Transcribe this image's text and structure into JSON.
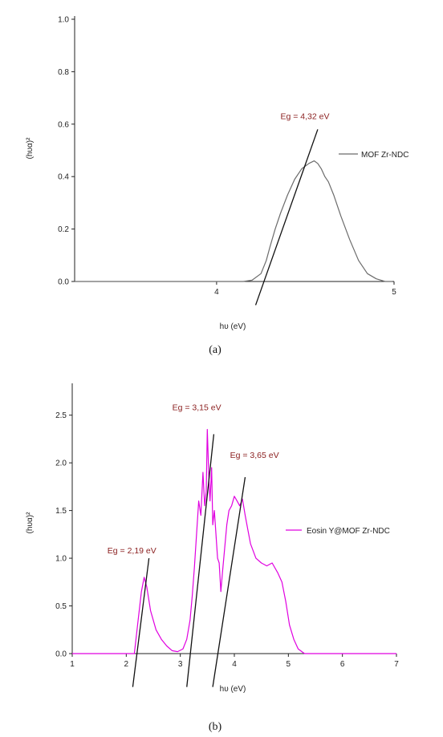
{
  "chart_data": [
    {
      "type": "line",
      "panel_label": "(a)",
      "xlabel": "hυ (eV)",
      "ylabel": "(hυα)²",
      "xlim": [
        3.2,
        5.0
      ],
      "ylim": [
        0.0,
        1.0
      ],
      "x_ticks": [
        4,
        5
      ],
      "y_ticks": [
        0.0,
        0.2,
        0.4,
        0.6,
        0.8,
        1.0
      ],
      "y_tick_labels": [
        "0.0",
        "0.2",
        "0.4",
        "0.6",
        "0.8",
        "1.0"
      ],
      "legend_position": "right",
      "grid": false,
      "series": [
        {
          "name": "MOF Zr-NDC",
          "color": "#6b6b6b",
          "x": [
            3.2,
            4.0,
            4.15,
            4.2,
            4.25,
            4.28,
            4.3,
            4.33,
            4.36,
            4.4,
            4.44,
            4.48,
            4.52,
            4.55,
            4.57,
            4.59,
            4.61,
            4.63,
            4.66,
            4.7,
            4.75,
            4.8,
            4.85,
            4.9,
            4.95,
            4.99
          ],
          "y": [
            0.0,
            0.0,
            0.0,
            0.005,
            0.03,
            0.08,
            0.13,
            0.2,
            0.26,
            0.33,
            0.39,
            0.43,
            0.45,
            0.46,
            0.45,
            0.43,
            0.4,
            0.38,
            0.33,
            0.25,
            0.16,
            0.08,
            0.03,
            0.01,
            0.0,
            0.0
          ]
        }
      ],
      "annotations": [
        {
          "text": "Eg = 4,32 eV",
          "x": 4.36,
          "y": 0.62
        }
      ],
      "tangent_lines": [
        {
          "x1": 4.22,
          "y1": -0.09,
          "x2": 4.57,
          "y2": 0.58
        }
      ]
    },
    {
      "type": "line",
      "panel_label": "(b)",
      "xlabel": "hυ (eV)",
      "ylabel": "(hυα)²",
      "xlim": [
        1,
        7
      ],
      "ylim": [
        0.0,
        2.8
      ],
      "x_ticks": [
        1,
        2,
        3,
        4,
        5,
        6,
        7
      ],
      "y_ticks": [
        0.0,
        0.5,
        1.0,
        1.5,
        2.0,
        2.5
      ],
      "y_tick_labels": [
        "0.0",
        "0.5",
        "1.0",
        "1.5",
        "2.0",
        "2.5"
      ],
      "legend_position": "right",
      "grid": false,
      "series": [
        {
          "name": "Eosin Y@MOF Zr-NDC",
          "color": "#e000e0",
          "x": [
            1.0,
            2.15,
            2.22,
            2.28,
            2.33,
            2.38,
            2.45,
            2.55,
            2.65,
            2.75,
            2.85,
            2.95,
            3.05,
            3.12,
            3.18,
            3.22,
            3.26,
            3.3,
            3.34,
            3.38,
            3.42,
            3.45,
            3.48,
            3.5,
            3.53,
            3.55,
            3.58,
            3.6,
            3.63,
            3.66,
            3.69,
            3.72,
            3.75,
            3.78,
            3.82,
            3.86,
            3.9,
            3.95,
            4.0,
            4.05,
            4.1,
            4.15,
            4.2,
            4.25,
            4.3,
            4.4,
            4.5,
            4.6,
            4.7,
            4.8,
            4.88,
            4.95,
            5.02,
            5.1,
            5.18,
            5.25,
            5.3,
            7.0
          ],
          "y": [
            0.0,
            0.0,
            0.35,
            0.65,
            0.8,
            0.7,
            0.45,
            0.25,
            0.15,
            0.08,
            0.03,
            0.02,
            0.05,
            0.15,
            0.35,
            0.6,
            0.9,
            1.25,
            1.6,
            1.45,
            1.9,
            1.55,
            1.7,
            2.35,
            1.8,
            1.6,
            1.95,
            1.35,
            1.5,
            1.25,
            1.0,
            0.95,
            0.65,
            0.85,
            1.1,
            1.35,
            1.5,
            1.55,
            1.65,
            1.6,
            1.55,
            1.62,
            1.45,
            1.3,
            1.15,
            1.0,
            0.95,
            0.92,
            0.95,
            0.85,
            0.75,
            0.55,
            0.3,
            0.15,
            0.05,
            0.02,
            0.0,
            0.0
          ]
        }
      ],
      "annotations": [
        {
          "text": "Eg = 2,19 eV",
          "x": 1.65,
          "y": 1.05
        },
        {
          "text": "Eg = 3,15 eV",
          "x": 2.85,
          "y": 2.55
        },
        {
          "text": "Eg = 3,65 eV",
          "x": 3.92,
          "y": 2.05
        }
      ],
      "tangent_lines": [
        {
          "x1": 2.12,
          "y1": -0.35,
          "x2": 2.42,
          "y2": 1.0
        },
        {
          "x1": 3.12,
          "y1": -0.35,
          "x2": 3.62,
          "y2": 2.3
        },
        {
          "x1": 3.6,
          "y1": -0.35,
          "x2": 4.2,
          "y2": 1.85
        }
      ]
    }
  ]
}
